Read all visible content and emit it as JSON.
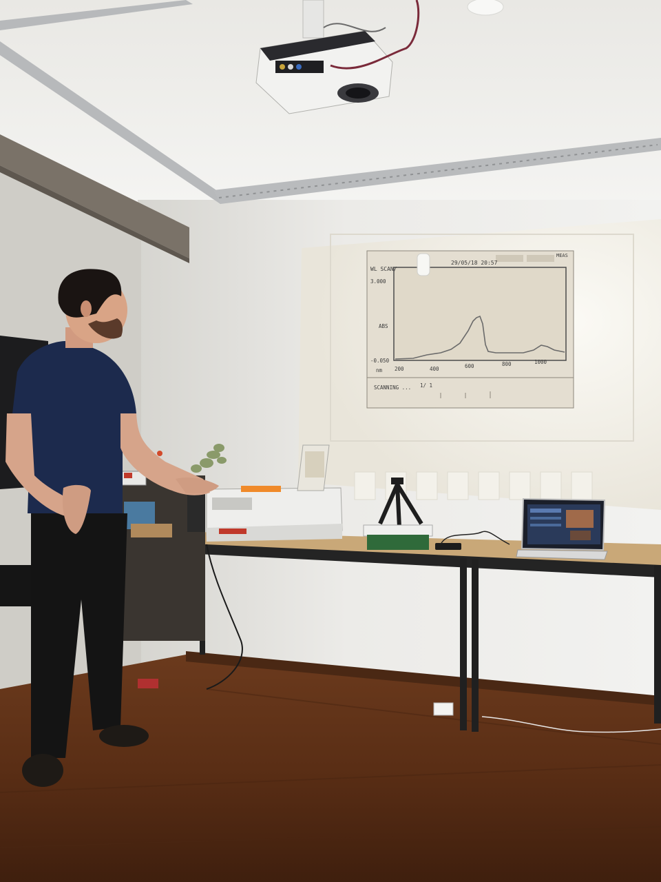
{
  "scene": {
    "description_tags": [
      "photo",
      "presentation",
      "projector",
      "spectrophotometer",
      "laptop"
    ]
  },
  "projected_screen": {
    "header_left": "WL SCAN/",
    "header_date": "29/05/18 20:57",
    "header_right": "MEAS",
    "y_top": "3.000",
    "y_label": "ABS",
    "y_bottom": "-0.050",
    "x_unit": "nm",
    "x_ticks": [
      "200",
      "400",
      "600",
      "800",
      "1000"
    ],
    "status": "SCANNING ...",
    "page": "1/ 1"
  },
  "colors": {
    "wall": "#ececea",
    "ceiling": "#f1f1ef",
    "floor": "#5b2f17",
    "shirt": "#1c2a4d",
    "table_top": "#c9a878"
  }
}
